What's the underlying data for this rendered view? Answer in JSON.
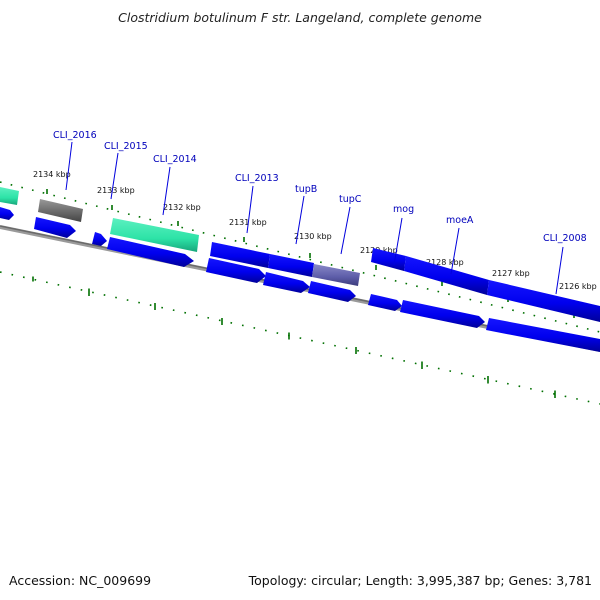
{
  "title": "Clostridium botulinum F str. Langeland, complete genome",
  "accession": "Accession: NC_009699",
  "topology": "Topology: circular; Length: 3,995,387 bp; Genes: 3,781",
  "colors": {
    "backbone": "#808080",
    "cds": "#0000ff",
    "rna": "#2de3a7",
    "pseudo": "#666666",
    "tick": "#007000",
    "label": "#0000bb"
  },
  "ticks": [
    "2134 kbp",
    "2133 kbp",
    "2132 kbp",
    "2131 kbp",
    "2130 kbp",
    "2129 kbp",
    "2128 kbp",
    "2127 kbp",
    "2126 kbp"
  ],
  "gene_labels": [
    "CLI_2016",
    "CLI_2015",
    "CLI_2014",
    "CLI_2013",
    "tupB",
    "tupC",
    "mog",
    "moeA",
    "CLI_2008"
  ]
}
